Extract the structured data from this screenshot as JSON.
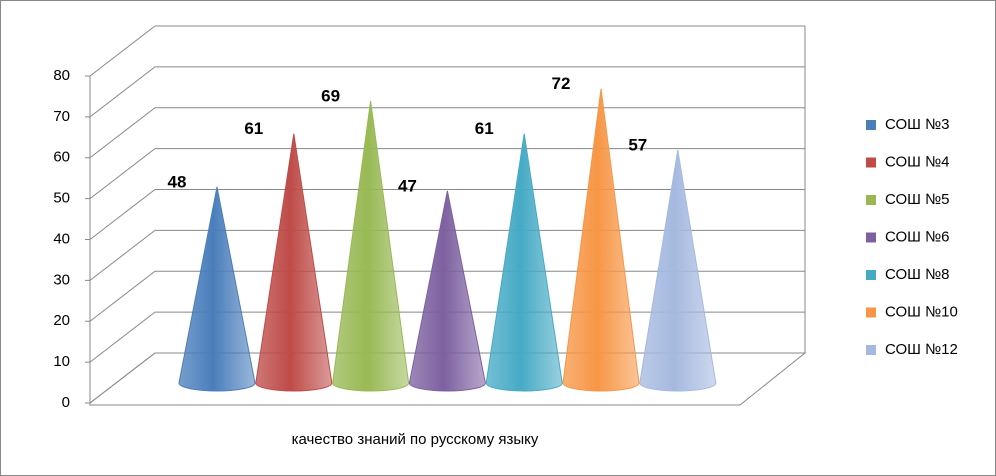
{
  "chart_data": {
    "type": "cone",
    "categories": [
      "качество знаний по русскому языку"
    ],
    "series": [
      {
        "name": "СОШ №3",
        "color": "#4a7ebb",
        "values": [
          48
        ]
      },
      {
        "name": "СОШ №4",
        "color": "#be4b48",
        "values": [
          61
        ]
      },
      {
        "name": "СОШ №5",
        "color": "#98b954",
        "values": [
          69
        ]
      },
      {
        "name": "СОШ №6",
        "color": "#7d60a0",
        "values": [
          47
        ]
      },
      {
        "name": "СОШ №8",
        "color": "#46aac5",
        "values": [
          61
        ]
      },
      {
        "name": "СОШ №10",
        "color": "#f79646",
        "values": [
          72
        ]
      },
      {
        "name": "СОШ №12",
        "color": "#a5b9e0",
        "values": [
          57
        ]
      }
    ],
    "ylim": [
      0,
      80
    ],
    "yticks": [
      0,
      10,
      20,
      30,
      40,
      50,
      60,
      70,
      80
    ],
    "grid": true,
    "legend": "right"
  }
}
